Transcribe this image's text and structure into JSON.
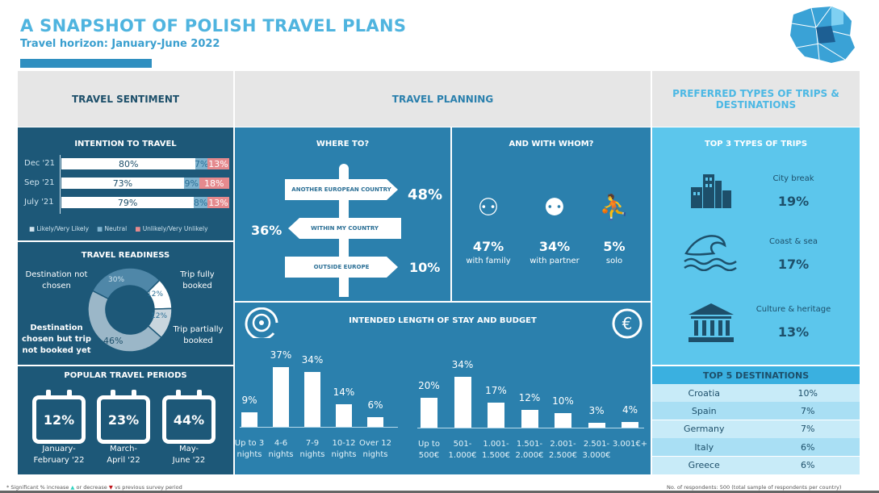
{
  "header": {
    "title": "A SNAPSHOT OF POLISH TRAVEL PLANS",
    "subtitle": "Travel horizon: January-June 2022"
  },
  "sections": {
    "sentiment": "TRAVEL SENTIMENT",
    "planning": "TRAVEL PLANNING",
    "preferred": "PREFERRED TYPES OF TRIPS & DESTINATIONS"
  },
  "intention": {
    "title": "INTENTION TO TRAVEL",
    "rows": [
      {
        "label": "Dec '21",
        "likely": "80%",
        "neutral": "7%",
        "unlikely": "13%",
        "v": [
          80,
          7,
          13
        ]
      },
      {
        "label": "Sep '21",
        "likely": "73%",
        "neutral": "9%",
        "unlikely": "18%",
        "v": [
          73,
          9,
          18
        ]
      },
      {
        "label": "July '21",
        "likely": "79%",
        "neutral": "8%",
        "unlikely": "13%",
        "v": [
          79,
          8,
          13
        ]
      }
    ],
    "legend": [
      "Likely/Very Likely",
      "Neutral",
      "Unlikely/Very Unlikely"
    ],
    "colors": {
      "likely": "#ffffff",
      "neutral": "#7fb3cf",
      "unlikely": "#e58a8e"
    }
  },
  "readiness": {
    "title": "TRAVEL READINESS",
    "slices": [
      {
        "label": "Destination not chosen",
        "value": "30%",
        "v": 30,
        "color": "#4f87a8"
      },
      {
        "label": "Trip fully booked",
        "value": "12%",
        "v": 12,
        "color": "#ffffff"
      },
      {
        "label": "Trip partially booked",
        "value": "12%",
        "v": 12,
        "color": "#c9d6de"
      },
      {
        "label": "Destination chosen but trip not booked yet",
        "value": "46%",
        "v": 46,
        "color": "#9bb7c8"
      }
    ]
  },
  "periods": {
    "title": "POPULAR TRAVEL PERIODS",
    "items": [
      {
        "value": "12%",
        "l1": "January-",
        "l2": "February '22"
      },
      {
        "value": "23%",
        "l1": "March-",
        "l2": "April '22"
      },
      {
        "value": "44%",
        "l1": "May-",
        "l2": "June '22"
      }
    ]
  },
  "where": {
    "title": "WHERE TO?",
    "items": [
      {
        "label": "ANOTHER EUROPEAN COUNTRY",
        "value": "48%"
      },
      {
        "label": "WITHIN MY COUNTRY",
        "value": "36%"
      },
      {
        "label": "OUTSIDE EUROPE",
        "value": "10%"
      }
    ]
  },
  "whom": {
    "title": "AND WITH WHOM?",
    "items": [
      {
        "value": "47%",
        "label": "with family",
        "icon": "family-icon"
      },
      {
        "value": "34%",
        "label": "with partner",
        "icon": "couple-icon"
      },
      {
        "value": "5%",
        "label": "solo",
        "icon": "hiker-icon"
      }
    ]
  },
  "chart_data": [
    {
      "type": "bar",
      "title": "INTENDED LENGTH OF STAY AND BUDGET",
      "series_name": "Length of stay",
      "categories": [
        [
          "Up to 3",
          "nights"
        ],
        [
          "4-6",
          "nights"
        ],
        [
          "7-9",
          "nights"
        ],
        [
          "10-12",
          "nights"
        ],
        [
          "Over 12",
          "nights"
        ]
      ],
      "values": [
        9,
        37,
        34,
        14,
        6
      ],
      "labels": [
        "9%",
        "37%",
        "34%",
        "14%",
        "6%"
      ]
    },
    {
      "type": "bar",
      "series_name": "Budget",
      "categories": [
        [
          "Up to",
          "500€"
        ],
        [
          "501-",
          "1.000€"
        ],
        [
          "1.001-",
          "1.500€"
        ],
        [
          "1.501-",
          "2.000€"
        ],
        [
          "2.001-",
          "2.500€"
        ],
        [
          "2.501-",
          "3.000€"
        ],
        [
          "3.001€+",
          ""
        ]
      ],
      "values": [
        20,
        34,
        17,
        12,
        10,
        3,
        4
      ],
      "labels": [
        "20%",
        "34%",
        "17%",
        "12%",
        "10%",
        "3%",
        "4%"
      ]
    }
  ],
  "stay_title": "INTENDED LENGTH OF STAY AND BUDGET",
  "trips": {
    "title": "TOP 3 TYPES OF TRIPS",
    "items": [
      {
        "label": "City break",
        "value": "19%"
      },
      {
        "label": "Coast & sea",
        "value": "17%"
      },
      {
        "label": "Culture & heritage",
        "value": "13%"
      }
    ]
  },
  "destinations": {
    "title": "TOP 5 DESTINATIONS",
    "items": [
      {
        "name": "Croatia",
        "value": "10%"
      },
      {
        "name": "Spain",
        "value": "7%"
      },
      {
        "name": "Germany",
        "value": "7%"
      },
      {
        "name": "Italy",
        "value": "6%"
      },
      {
        "name": "Greece",
        "value": "6%"
      }
    ]
  },
  "footer": {
    "note_a": "* Significant % increase",
    "note_b": "or decrease",
    "note_c": "vs previous survey period",
    "respondents": "No. of respondents: 500 (total sample of respondents per country)"
  }
}
